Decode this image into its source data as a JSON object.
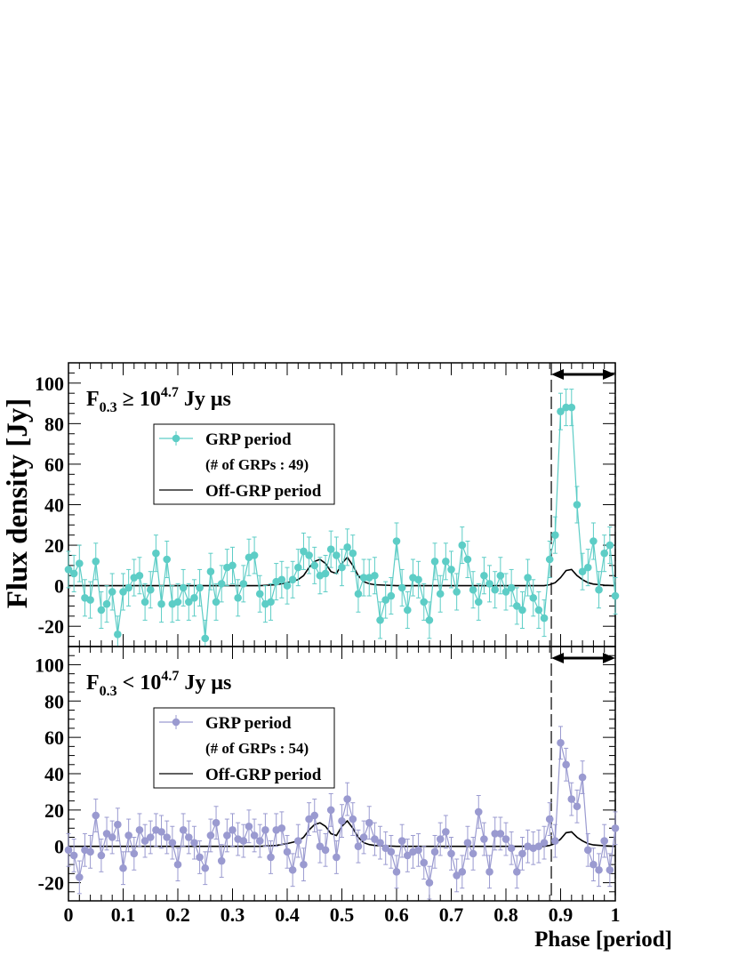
{
  "chart_data": [
    {
      "type": "line",
      "title_base": "F",
      "title_sub": "0.3",
      "title_rel": "≥ 10",
      "title_sup": "4.7",
      "title_unit": "Jy  μs",
      "xlabel": "Phase [period]",
      "ylabel": "Flux density [Jy]",
      "xlim": [
        0,
        1
      ],
      "ylim": [
        -30,
        110
      ],
      "yticks": [
        -20,
        0,
        20,
        40,
        60,
        80,
        100
      ],
      "xticks": [
        0,
        0.1,
        0.2,
        0.3,
        0.4,
        0.5,
        0.6,
        0.7,
        0.8,
        0.9,
        1
      ],
      "xtick_labels": [
        "0",
        "0.1",
        "0.2",
        "0.3",
        "0.4",
        "0.5",
        "0.6",
        "0.7",
        "0.8",
        "0.9",
        "1"
      ],
      "ytick_labels": [
        "-20",
        "0",
        "20",
        "40",
        "60",
        "80",
        "100"
      ],
      "grp_window": [
        0.883,
        1.0
      ],
      "legend": {
        "placement": "upper-left",
        "grp_label": "GRP period",
        "count_label": "(# of GRPs : 49)",
        "off_label": "Off-GRP period"
      },
      "series": [
        {
          "name": "GRP period",
          "color": "#5dcdc6",
          "error": 9,
          "x": [
            0.0,
            0.01,
            0.02,
            0.03,
            0.04,
            0.05,
            0.06,
            0.07,
            0.08,
            0.09,
            0.1,
            0.11,
            0.12,
            0.13,
            0.14,
            0.15,
            0.16,
            0.17,
            0.18,
            0.19,
            0.2,
            0.21,
            0.22,
            0.23,
            0.24,
            0.25,
            0.26,
            0.27,
            0.28,
            0.29,
            0.3,
            0.31,
            0.32,
            0.33,
            0.34,
            0.35,
            0.36,
            0.37,
            0.38,
            0.39,
            0.4,
            0.41,
            0.42,
            0.43,
            0.44,
            0.45,
            0.46,
            0.47,
            0.48,
            0.49,
            0.5,
            0.51,
            0.52,
            0.53,
            0.54,
            0.55,
            0.56,
            0.57,
            0.58,
            0.59,
            0.6,
            0.61,
            0.62,
            0.63,
            0.64,
            0.65,
            0.66,
            0.67,
            0.68,
            0.69,
            0.7,
            0.71,
            0.72,
            0.73,
            0.74,
            0.75,
            0.76,
            0.77,
            0.78,
            0.79,
            0.8,
            0.81,
            0.82,
            0.83,
            0.84,
            0.85,
            0.86,
            0.87,
            0.88,
            0.89,
            0.9,
            0.91,
            0.92,
            0.93,
            0.94,
            0.95,
            0.96,
            0.97,
            0.98,
            0.99,
            1.0
          ],
          "values": [
            8,
            6,
            11,
            -6,
            -7,
            12,
            -12,
            -9,
            -3,
            -24,
            -3,
            -1,
            4,
            5,
            -8,
            -2,
            16,
            -9,
            13,
            -9,
            -8,
            -1,
            -8,
            -6,
            -1,
            -26,
            7,
            -8,
            1,
            9,
            10,
            -6,
            1,
            14,
            15,
            -4,
            -9,
            -8,
            2,
            3,
            0,
            3,
            9,
            17,
            15,
            10,
            5,
            6,
            18,
            15,
            9,
            19,
            16,
            -4,
            4,
            4,
            5,
            -17,
            -7,
            -5,
            22,
            -1,
            -12,
            4,
            3,
            -8,
            -17,
            12,
            -4,
            12,
            8,
            -3,
            20,
            13,
            -2,
            -8,
            5,
            1,
            -2,
            5,
            -3,
            -1,
            -10,
            -12,
            4,
            -6,
            -12,
            -16,
            13,
            25,
            86,
            88,
            88,
            40,
            7,
            9,
            22,
            -2,
            16,
            20,
            -5
          ]
        },
        {
          "name": "Off-GRP period",
          "color": "#000000",
          "x": [
            0.0,
            0.35,
            0.38,
            0.4,
            0.42,
            0.43,
            0.44,
            0.45,
            0.46,
            0.47,
            0.48,
            0.49,
            0.5,
            0.51,
            0.52,
            0.53,
            0.54,
            0.55,
            0.56,
            0.6,
            0.87,
            0.88,
            0.89,
            0.9,
            0.91,
            0.92,
            0.93,
            0.94,
            0.95,
            0.96,
            0.98,
            1.0
          ],
          "values": [
            0,
            0,
            0.5,
            1.5,
            3,
            5,
            9,
            12,
            13,
            11,
            7,
            6,
            11,
            14,
            10,
            5,
            2,
            1,
            0.5,
            0,
            0,
            0.5,
            1.5,
            4,
            7.5,
            8,
            5,
            3,
            1.5,
            0.8,
            0.3,
            0
          ]
        }
      ]
    },
    {
      "type": "line",
      "title_base": "F",
      "title_sub": "0.3",
      "title_rel": "< 10",
      "title_sup": "4.7",
      "title_unit": "Jy  μs",
      "xlabel": "Phase [period]",
      "ylabel": "Flux density [Jy]",
      "xlim": [
        0,
        1
      ],
      "ylim": [
        -30,
        110
      ],
      "yticks": [
        -20,
        0,
        20,
        40,
        60,
        80,
        100
      ],
      "xticks": [
        0,
        0.1,
        0.2,
        0.3,
        0.4,
        0.5,
        0.6,
        0.7,
        0.8,
        0.9,
        1
      ],
      "xtick_labels": [
        "0",
        "0.1",
        "0.2",
        "0.3",
        "0.4",
        "0.5",
        "0.6",
        "0.7",
        "0.8",
        "0.9",
        "1"
      ],
      "ytick_labels": [
        "-20",
        "0",
        "20",
        "40",
        "60",
        "80",
        "100"
      ],
      "grp_window": [
        0.883,
        1.0
      ],
      "legend": {
        "placement": "upper-left",
        "grp_label": "GRP period",
        "count_label": "(# of GRPs : 54)",
        "off_label": "Off-GRP period"
      },
      "series": [
        {
          "name": "GRP period",
          "color": "#9a9ad0",
          "error": 9,
          "x": [
            0.0,
            0.01,
            0.02,
            0.03,
            0.04,
            0.05,
            0.06,
            0.07,
            0.08,
            0.09,
            0.1,
            0.11,
            0.12,
            0.13,
            0.14,
            0.15,
            0.16,
            0.17,
            0.18,
            0.19,
            0.2,
            0.21,
            0.22,
            0.23,
            0.24,
            0.25,
            0.26,
            0.27,
            0.28,
            0.29,
            0.3,
            0.31,
            0.32,
            0.33,
            0.34,
            0.35,
            0.36,
            0.37,
            0.38,
            0.39,
            0.4,
            0.41,
            0.42,
            0.43,
            0.44,
            0.45,
            0.46,
            0.47,
            0.48,
            0.49,
            0.5,
            0.51,
            0.52,
            0.53,
            0.54,
            0.55,
            0.56,
            0.57,
            0.58,
            0.59,
            0.6,
            0.61,
            0.62,
            0.63,
            0.64,
            0.65,
            0.66,
            0.67,
            0.68,
            0.69,
            0.7,
            0.71,
            0.72,
            0.73,
            0.74,
            0.75,
            0.76,
            0.77,
            0.78,
            0.79,
            0.8,
            0.81,
            0.82,
            0.83,
            0.84,
            0.85,
            0.86,
            0.87,
            0.88,
            0.89,
            0.9,
            0.91,
            0.92,
            0.93,
            0.94,
            0.95,
            0.96,
            0.97,
            0.98,
            0.99,
            1.0
          ],
          "values": [
            -2,
            -5,
            -17,
            -2,
            -3,
            17,
            -5,
            7,
            5,
            12,
            -12,
            6,
            -4,
            9,
            3,
            5,
            9,
            8,
            5,
            2,
            -10,
            9,
            5,
            2,
            -6,
            -12,
            6,
            13,
            -8,
            6,
            9,
            4,
            3,
            11,
            6,
            3,
            9,
            -6,
            9,
            10,
            -3,
            -13,
            3,
            -10,
            15,
            17,
            0,
            -2,
            20,
            -6,
            14,
            26,
            15,
            0,
            5,
            13,
            4,
            2,
            -1,
            -3,
            -14,
            3,
            -5,
            -3,
            -2,
            -9,
            -20,
            -3,
            4,
            8,
            -4,
            -16,
            -14,
            2,
            -4,
            19,
            4,
            -14,
            7,
            7,
            4,
            -1,
            -14,
            -4,
            0,
            -1,
            0,
            2,
            15,
            3,
            57,
            45,
            26,
            22,
            38,
            -2,
            -10,
            -13,
            3,
            -13,
            10
          ]
        },
        {
          "name": "Off-GRP period",
          "color": "#000000",
          "x": [
            0.0,
            0.35,
            0.38,
            0.4,
            0.42,
            0.43,
            0.44,
            0.45,
            0.46,
            0.47,
            0.48,
            0.49,
            0.5,
            0.51,
            0.52,
            0.53,
            0.54,
            0.55,
            0.56,
            0.6,
            0.87,
            0.88,
            0.89,
            0.9,
            0.91,
            0.92,
            0.93,
            0.94,
            0.95,
            0.96,
            0.98,
            1.0
          ],
          "values": [
            0,
            0,
            0.5,
            1.5,
            3,
            5,
            9,
            12,
            13,
            11,
            7,
            6,
            11,
            14,
            10,
            5,
            2,
            1,
            0.5,
            0,
            0,
            0.5,
            1.5,
            4,
            7.5,
            8,
            5,
            3,
            1.5,
            0.8,
            0.3,
            0
          ]
        }
      ]
    }
  ]
}
